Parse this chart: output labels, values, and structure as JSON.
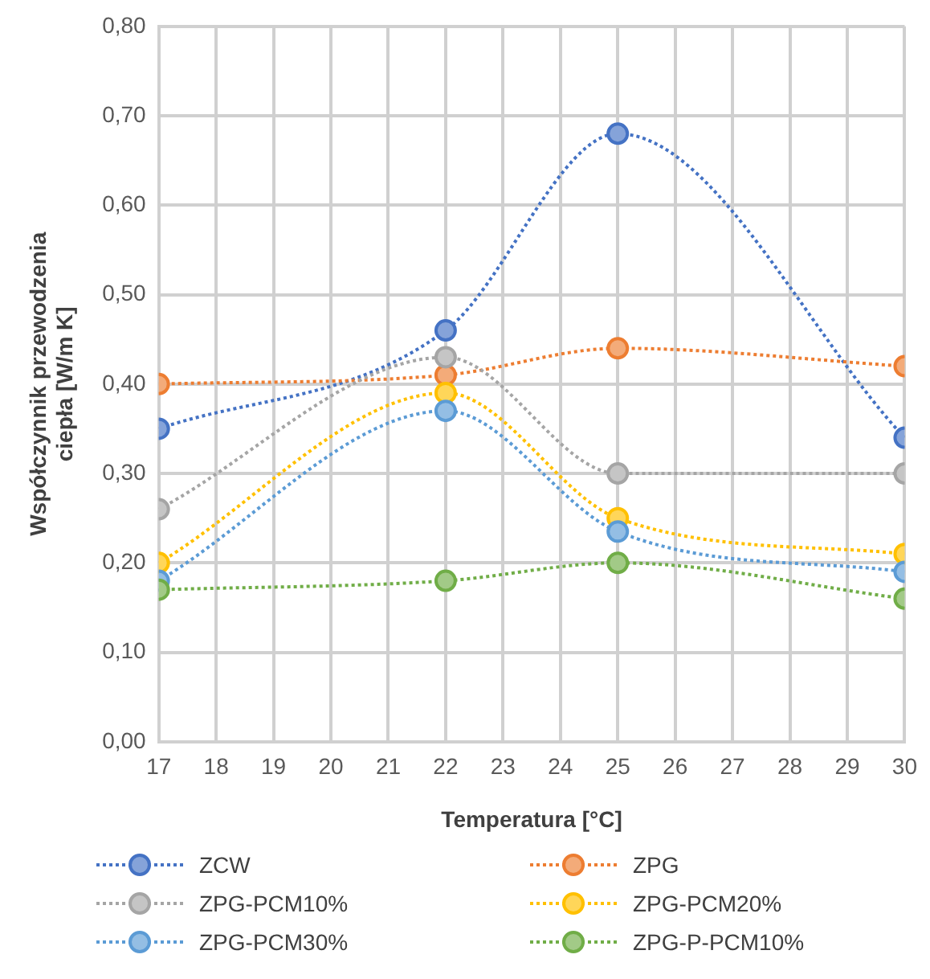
{
  "chart_data": {
    "type": "line",
    "xlabel": "Temperatura [°C]",
    "ylabel": "Współczynnik przewodzenia ciepła [W/m K]",
    "x": [
      17,
      22,
      25,
      30
    ],
    "xlim": [
      17,
      30
    ],
    "xticks": [
      17,
      18,
      19,
      20,
      21,
      22,
      23,
      24,
      25,
      26,
      27,
      28,
      29,
      30
    ],
    "ylim": [
      0,
      0.8
    ],
    "yticks": [
      {
        "value": 0,
        "label": "0,00"
      },
      {
        "value": 0.1,
        "label": "0,10"
      },
      {
        "value": 0.2,
        "label": "0,20"
      },
      {
        "value": 0.3,
        "label": "0,30"
      },
      {
        "value": 0.4,
        "label": "0,40"
      },
      {
        "value": 0.5,
        "label": "0,50"
      },
      {
        "value": 0.6,
        "label": "0,60"
      },
      {
        "value": 0.7,
        "label": "0,70"
      },
      {
        "value": 0.8,
        "label": "0,80"
      }
    ],
    "grid": true,
    "legend": "bottom",
    "marker": "circle",
    "line_style": "dotted",
    "series": [
      {
        "name": "ZCW",
        "color": "#4472c4",
        "values": [
          0.35,
          0.46,
          0.68,
          0.34
        ]
      },
      {
        "name": "ZPG",
        "color": "#ed7d31",
        "values": [
          0.4,
          0.41,
          0.44,
          0.42
        ]
      },
      {
        "name": "ZPG-PCM10%",
        "color": "#a5a5a5",
        "values": [
          0.26,
          0.43,
          0.3,
          0.3
        ]
      },
      {
        "name": "ZPG-PCM20%",
        "color": "#ffc000",
        "values": [
          0.2,
          0.39,
          0.25,
          0.21
        ]
      },
      {
        "name": "ZPG-PCM30%",
        "color": "#5b9bd5",
        "values": [
          0.18,
          0.37,
          0.235,
          0.19
        ]
      },
      {
        "name": "ZPG-P-PCM10%",
        "color": "#70ad47",
        "values": [
          0.17,
          0.18,
          0.2,
          0.16
        ]
      }
    ]
  }
}
